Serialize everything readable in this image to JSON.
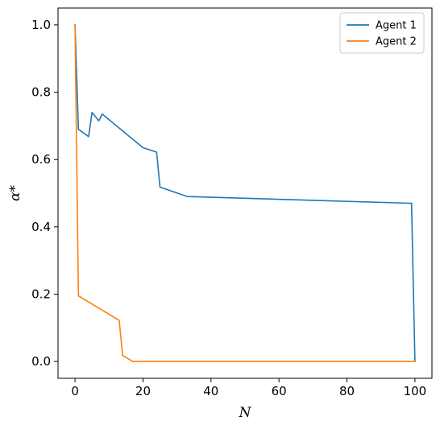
{
  "chart_data": {
    "type": "line",
    "xlabel": "N",
    "ylabel": "α*",
    "xlim": [
      -5,
      105
    ],
    "ylim": [
      -0.05,
      1.05
    ],
    "xticks": [
      0,
      20,
      40,
      60,
      80,
      100
    ],
    "yticks": [
      0.0,
      0.2,
      0.4,
      0.6,
      0.8,
      1.0
    ],
    "xtick_labels": [
      "0",
      "20",
      "40",
      "60",
      "80",
      "100"
    ],
    "ytick_labels": [
      "0.0",
      "0.2",
      "0.4",
      "0.6",
      "0.8",
      "1.0"
    ],
    "grid": false,
    "legend_position": "top-right",
    "series": [
      {
        "name": "Agent 1",
        "color": "#1f77b4",
        "points": [
          [
            0,
            1.0
          ],
          [
            1,
            0.69
          ],
          [
            4,
            0.668
          ],
          [
            5,
            0.74
          ],
          [
            7,
            0.715
          ],
          [
            8,
            0.735
          ],
          [
            20,
            0.635
          ],
          [
            24,
            0.622
          ],
          [
            25,
            0.518
          ],
          [
            33,
            0.49
          ],
          [
            99,
            0.47
          ],
          [
            100,
            0.0
          ]
        ]
      },
      {
        "name": "Agent 2",
        "color": "#ff7f0e",
        "points": [
          [
            0,
            1.0
          ],
          [
            1,
            0.195
          ],
          [
            13,
            0.122
          ],
          [
            14,
            0.018
          ],
          [
            17,
            0.0
          ],
          [
            100,
            0.0
          ]
        ]
      }
    ]
  }
}
